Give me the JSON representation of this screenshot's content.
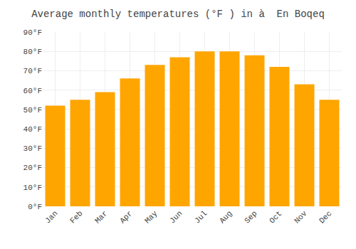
{
  "chart_data": {
    "type": "bar",
    "title": "Average monthly temperatures (°F ) in à  En Boqeq",
    "categories": [
      "Jan",
      "Feb",
      "Mar",
      "Apr",
      "May",
      "Jun",
      "Jul",
      "Aug",
      "Sep",
      "Oct",
      "Nov",
      "Dec"
    ],
    "values": [
      52,
      55,
      59,
      66,
      73,
      77,
      80,
      80,
      78,
      72,
      63,
      55
    ],
    "color": "#FFA500",
    "ylim": [
      0,
      90
    ],
    "yticks": [
      {
        "value": 0,
        "label": "0°F"
      },
      {
        "value": 10,
        "label": "10°F"
      },
      {
        "value": 20,
        "label": "20°F"
      },
      {
        "value": 30,
        "label": "30°F"
      },
      {
        "value": 40,
        "label": "40°F"
      },
      {
        "value": 50,
        "label": "50°F"
      },
      {
        "value": 60,
        "label": "60°F"
      },
      {
        "value": 70,
        "label": "70°F"
      },
      {
        "value": 80,
        "label": "80°F"
      },
      {
        "value": 90,
        "label": "90°F"
      }
    ],
    "grid": true
  }
}
